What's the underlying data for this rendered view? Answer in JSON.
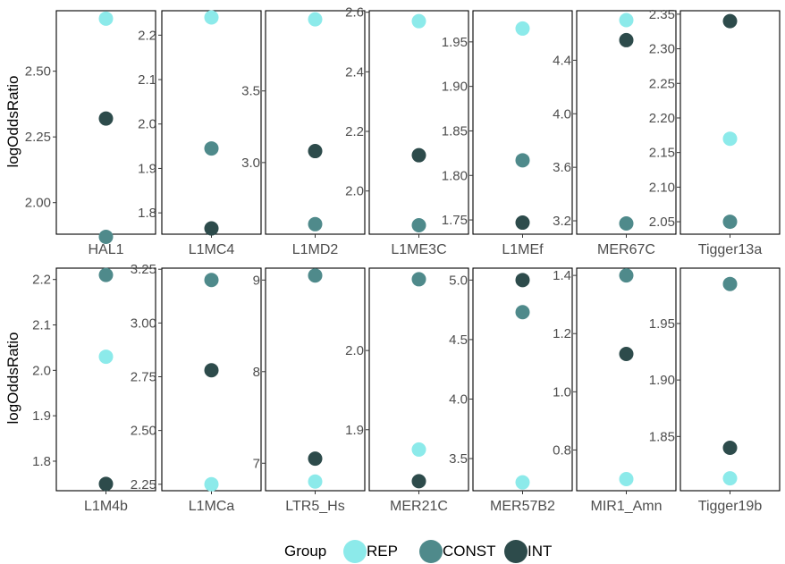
{
  "chart_data": {
    "type": "scatter",
    "layout": "faceted grid, 2 rows x 7 columns, independent y scales",
    "ylabel": "logOddsRatio",
    "legend": {
      "title": "Group",
      "position": "bottom",
      "entries": [
        {
          "name": "REP",
          "color": "#8ceaea"
        },
        {
          "name": "CONST",
          "color": "#4f8a8b"
        },
        {
          "name": "INT",
          "color": "#2d4b4b"
        }
      ]
    },
    "facets": [
      {
        "label": "HAL1",
        "ylim": [
          1.88,
          2.73
        ],
        "ticks": [
          "2.00",
          "2.25",
          "2.50"
        ],
        "points": {
          "REP": 2.7,
          "CONST": 1.87,
          "INT": 2.32
        }
      },
      {
        "label": "L1MC4",
        "ylim": [
          1.752,
          2.255
        ],
        "ticks": [
          "1.8",
          "1.9",
          "2.0",
          "2.1",
          "2.2"
        ],
        "points": {
          "REP": 2.24,
          "CONST": 1.945,
          "INT": 1.765
        }
      },
      {
        "label": "L1MD2",
        "ylim": [
          2.5,
          4.06
        ],
        "ticks": [
          "3.0",
          "3.5"
        ],
        "points": {
          "REP": 4.0,
          "CONST": 2.57,
          "INT": 3.08
        }
      },
      {
        "label": "L1ME3C",
        "ylim": [
          1.855,
          2.605
        ],
        "ticks": [
          "2.0",
          "2.2",
          "2.4",
          "2.6"
        ],
        "points": {
          "REP": 2.57,
          "CONST": 1.885,
          "INT": 2.12
        }
      },
      {
        "label": "L1MEf",
        "ylim": [
          1.734,
          1.985
        ],
        "ticks": [
          "1.75",
          "1.80",
          "1.85",
          "1.90",
          "1.95"
        ],
        "points": {
          "REP": 1.965,
          "CONST": 1.817,
          "INT": 1.747
        }
      },
      {
        "label": "MER67C",
        "ylim": [
          3.1,
          4.77
        ],
        "ticks": [
          "3.2",
          "3.6",
          "4.0",
          "4.4"
        ],
        "points": {
          "REP": 4.7,
          "CONST": 3.18,
          "INT": 4.55
        }
      },
      {
        "label": "Tigger13a",
        "ylim": [
          2.032,
          2.355
        ],
        "ticks": [
          "2.05",
          "2.10",
          "2.15",
          "2.20",
          "2.25",
          "2.30",
          "2.35"
        ],
        "points": {
          "REP": 2.17,
          "CONST": 2.05,
          "INT": 2.34
        }
      },
      {
        "label": "L1M4b",
        "ylim": [
          1.735,
          2.225
        ],
        "ticks": [
          "1.8",
          "1.9",
          "2.0",
          "2.1",
          "2.2"
        ],
        "points": {
          "REP": 2.03,
          "CONST": 2.21,
          "INT": 1.75
        }
      },
      {
        "label": "L1MCa",
        "ylim": [
          2.22,
          3.255
        ],
        "ticks": [
          "2.25",
          "2.50",
          "2.75",
          "3.00",
          "3.25"
        ],
        "points": {
          "REP": 2.25,
          "CONST": 3.2,
          "INT": 2.78
        }
      },
      {
        "label": "LTR5_Hs",
        "ylim": [
          6.7,
          9.13
        ],
        "ticks": [
          "7",
          "8",
          "9"
        ],
        "points": {
          "REP": 6.8,
          "CONST": 9.05,
          "INT": 7.05
        }
      },
      {
        "label": "MER21C",
        "ylim": [
          1.823,
          2.104
        ],
        "ticks": [
          "1.9",
          "2.0"
        ],
        "points": {
          "REP": 1.875,
          "CONST": 2.09,
          "INT": 1.835
        }
      },
      {
        "label": "MER57B2",
        "ylim": [
          3.23,
          5.1
        ],
        "ticks": [
          "3.5",
          "4.0",
          "4.5",
          "5.0"
        ],
        "points": {
          "REP": 3.3,
          "CONST": 4.73,
          "INT": 5.0
        }
      },
      {
        "label": "MIR1_Amn",
        "ylim": [
          0.66,
          1.425
        ],
        "ticks": [
          "0.8",
          "1.0",
          "1.2",
          "1.4"
        ],
        "points": {
          "REP": 0.7,
          "CONST": 1.4,
          "INT": 1.13
        }
      },
      {
        "label": "Tigger19b",
        "ylim": [
          1.802,
          1.999
        ],
        "ticks": [
          "1.85",
          "1.90",
          "1.95"
        ],
        "points": {
          "REP": 1.813,
          "CONST": 1.985,
          "INT": 1.84
        }
      }
    ]
  }
}
